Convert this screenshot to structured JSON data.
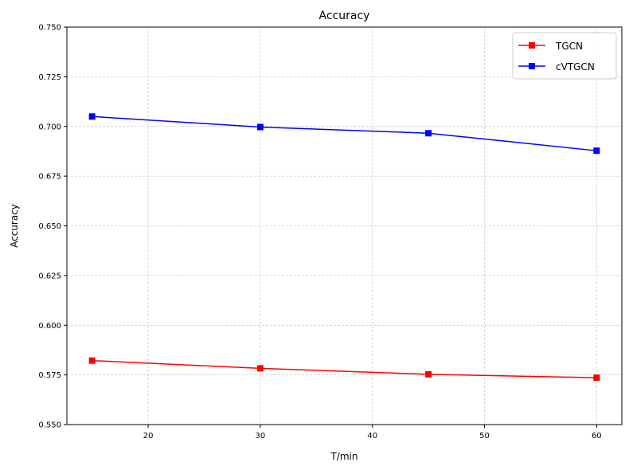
{
  "chart_data": {
    "type": "line",
    "title": "Accuracy",
    "xlabel": "T/min",
    "ylabel": "Accuracy",
    "xlim": [
      12.75,
      62.25
    ],
    "ylim": [
      0.55,
      0.75
    ],
    "x_ticks": [
      20,
      30,
      40,
      50,
      60
    ],
    "y_ticks": [
      0.55,
      0.575,
      0.6,
      0.625,
      0.65,
      0.675,
      0.7,
      0.725,
      0.75
    ],
    "x_tick_labels": [
      "20",
      "30",
      "40",
      "50",
      "60"
    ],
    "y_tick_labels": [
      "0.550",
      "0.575",
      "0.600",
      "0.625",
      "0.650",
      "0.675",
      "0.700",
      "0.725",
      "0.750"
    ],
    "grid": true,
    "legend_position": "top-right",
    "x": [
      15,
      30,
      45,
      60
    ],
    "series": [
      {
        "name": "TGCN",
        "color": "#ff0000",
        "marker": "square",
        "values": [
          0.5822,
          0.5783,
          0.5753,
          0.5736
        ]
      },
      {
        "name": "cVTGCN",
        "color": "#0000ff",
        "marker": "square",
        "values": [
          0.705,
          0.6997,
          0.6966,
          0.6878
        ]
      }
    ]
  }
}
